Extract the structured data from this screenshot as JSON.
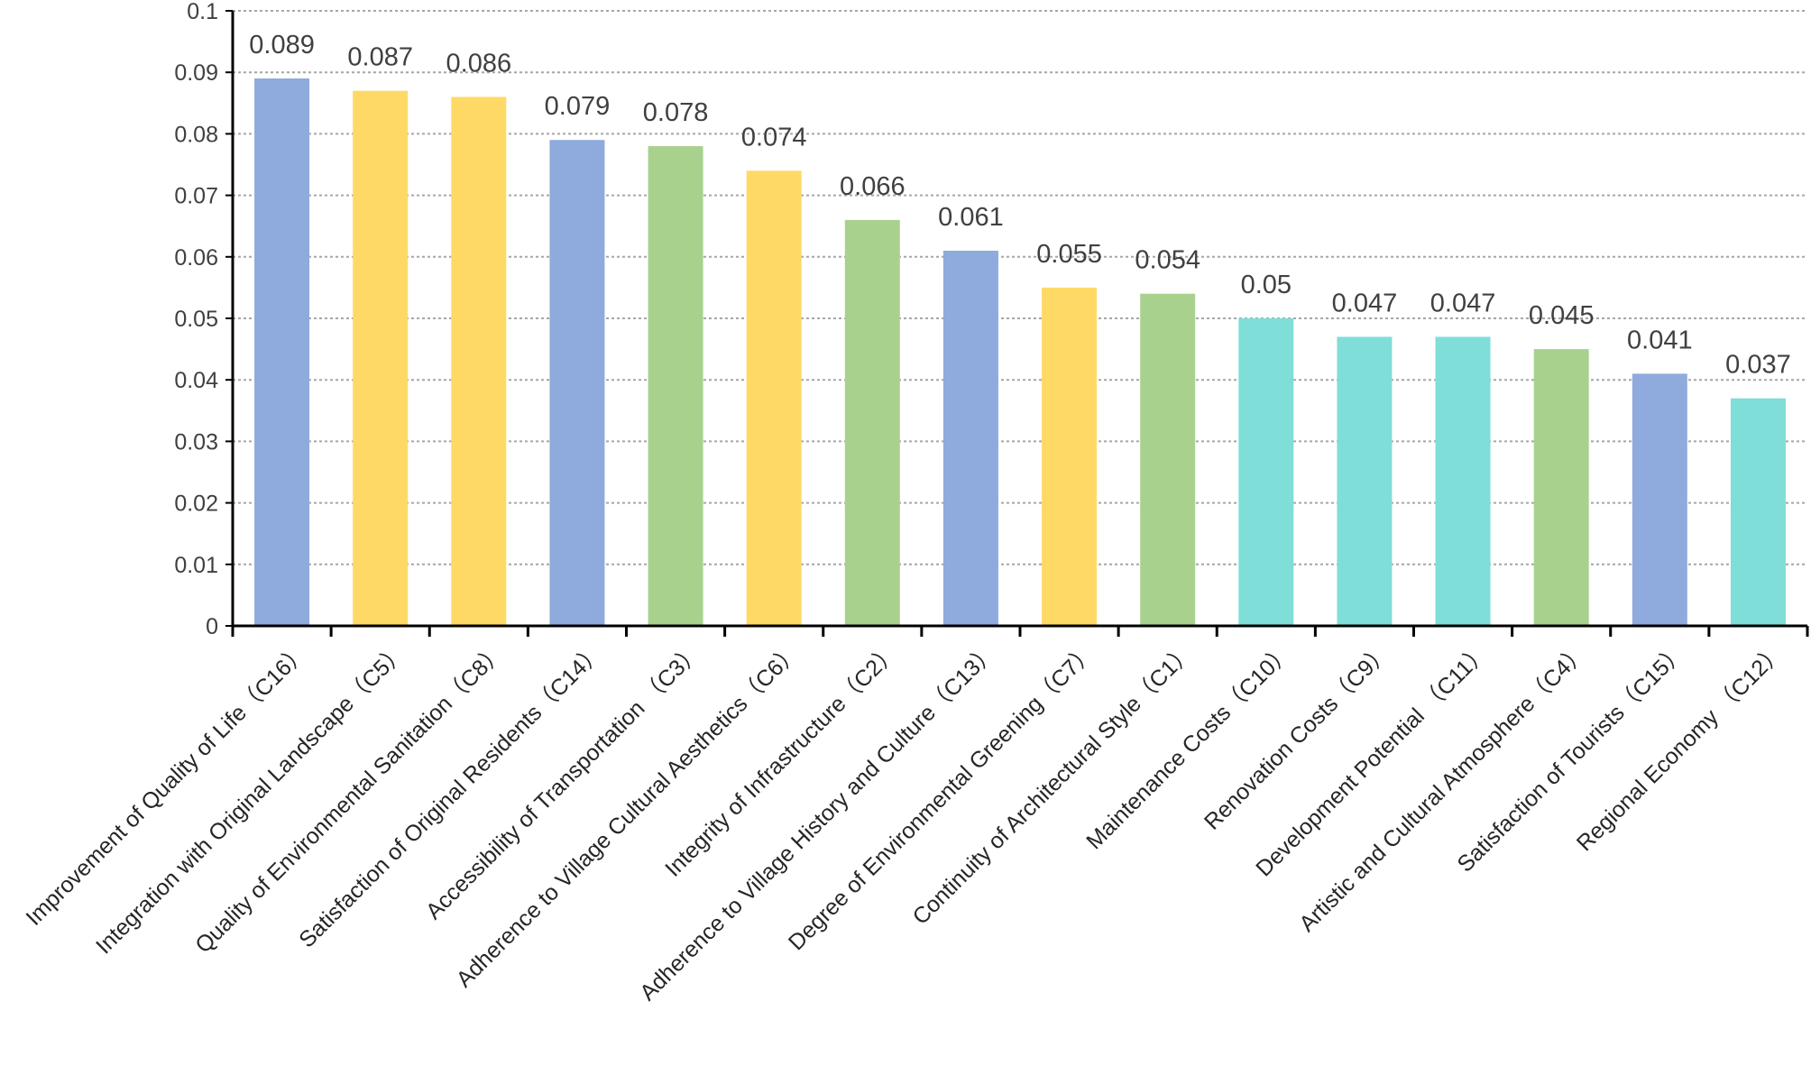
{
  "chart_data": {
    "type": "bar",
    "title": "",
    "xlabel": "",
    "ylabel": "",
    "ylim": [
      0,
      0.1
    ],
    "yticks": [
      "0",
      "0.01",
      "0.02",
      "0.03",
      "0.04",
      "0.05",
      "0.06",
      "0.07",
      "0.08",
      "0.09",
      "0.1"
    ],
    "grid": true,
    "legend": "none",
    "categories": [
      "Improvement of Quality of Life（C16）",
      "Integration with Original Landscape（C5）",
      "Quality of Environmental Sanitation（C8）",
      "Satisfaction of Original Residents（C14）",
      "Accessibility of Transportation （C3）",
      "Adherence to Village Cultural Aesthetics（C6）",
      "Integrity of Infrastructure（C2）",
      "Adherence to Village History and Culture（C13）",
      "Degree of Environmental Greening（C7）",
      "Continuity of Architectural Style（C1）",
      "Maintenance Costs（C10）",
      "Renovation Costs（C9）",
      "Development Potential （C11）",
      "Artistic and Cultural Atmosphere（C4）",
      "Satisfaction of Tourists（C15）",
      "Regional Economy （C12）"
    ],
    "values": [
      0.089,
      0.087,
      0.086,
      0.079,
      0.078,
      0.074,
      0.066,
      0.061,
      0.055,
      0.054,
      0.05,
      0.047,
      0.047,
      0.045,
      0.041,
      0.037
    ],
    "value_labels": [
      "0.089",
      "0.087",
      "0.086",
      "0.079",
      "0.078",
      "0.074",
      "0.066",
      "0.061",
      "0.055",
      "0.054",
      "0.05",
      "0.047",
      "0.047",
      "0.045",
      "0.041",
      "0.037"
    ],
    "colors": [
      "#8faadc",
      "#ffd966",
      "#ffd966",
      "#8faadc",
      "#a9d18e",
      "#ffd966",
      "#a9d18e",
      "#8faadc",
      "#ffd966",
      "#a9d18e",
      "#7fded8",
      "#7fded8",
      "#7fded8",
      "#a9d18e",
      "#8faadc",
      "#7fded8"
    ]
  },
  "style": {
    "axis_color": "#000000",
    "grid_color": "#a6a6a6",
    "text_color": "#404040"
  }
}
